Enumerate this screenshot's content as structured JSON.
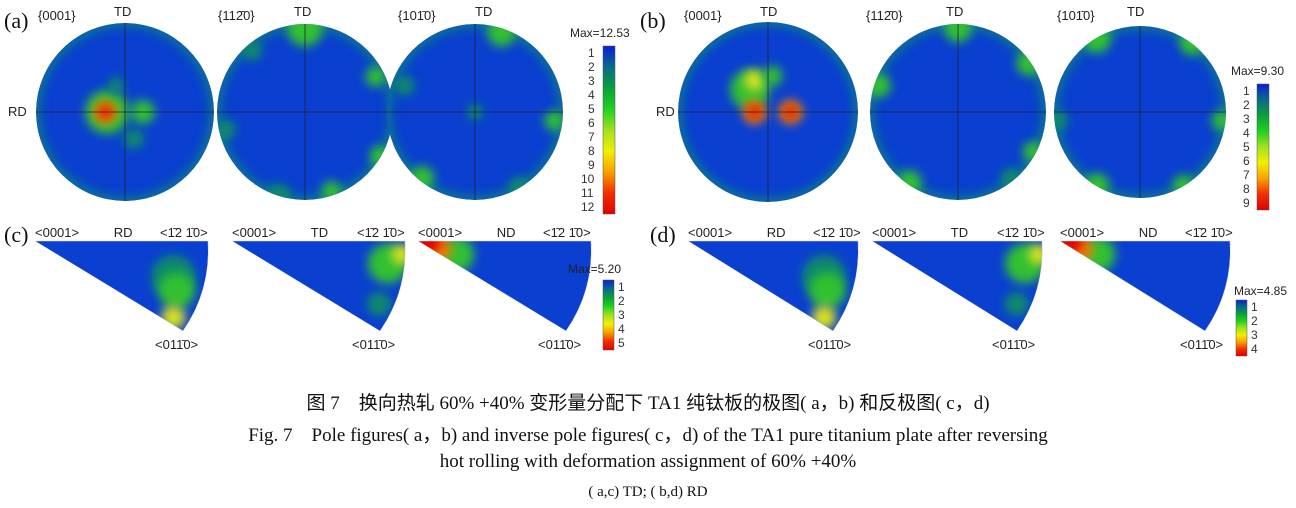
{
  "panels": {
    "a": {
      "label": "(a)",
      "titles": [
        "{0001}",
        "{112̄0}",
        "{101̄0}"
      ],
      "td": "TD",
      "rd": "RD",
      "max": "Max=12.53",
      "ticks": [
        "1",
        "2",
        "3",
        "4",
        "5",
        "6",
        "7",
        "8",
        "9",
        "10",
        "11",
        "12"
      ]
    },
    "b": {
      "label": "(b)",
      "titles": [
        "{0001}",
        "{112̄0}",
        "{101̄0}"
      ],
      "td": "TD",
      "rd": "RD",
      "max": "Max=9.30",
      "ticks": [
        "1",
        "2",
        "3",
        "4",
        "5",
        "6",
        "7",
        "8",
        "9"
      ]
    },
    "c": {
      "label": "(c)",
      "dirs": [
        "RD",
        "TD",
        "ND"
      ],
      "corner_left": "<0001>",
      "corner_right": "<1̄2 1̄0>",
      "corner_bottom": "<011̄0>",
      "max": "Max=5.20",
      "ticks": [
        "1",
        "2",
        "3",
        "4",
        "5"
      ]
    },
    "d": {
      "label": "(d)",
      "dirs": [
        "RD",
        "TD",
        "ND"
      ],
      "corner_left": "<0001>",
      "corner_right": "<1̄2 1̄0>",
      "corner_bottom": "<011̄0>",
      "max": "Max=4.85",
      "ticks": [
        "1",
        "2",
        "3",
        "4"
      ]
    }
  },
  "colormap": [
    "#0a1fd6",
    "#0a6a8a",
    "#0aa03a",
    "#20d020",
    "#a0e020",
    "#f0f000",
    "#f8a000",
    "#f03000",
    "#e00000"
  ],
  "caption": {
    "zh": "图 7　换向热轧 60% +40% 变形量分配下 TA1 纯钛板的极图( a，b) 和反极图( c，d)",
    "en1": "Fig. 7　Pole figures( a，b)  and inverse pole figures( c，d)  of the TA1 pure titanium plate after reversing",
    "en2": "hot rolling with deformation assignment of 60% +40%",
    "note": "( a,c)  TD;  ( b,d)  RD"
  }
}
